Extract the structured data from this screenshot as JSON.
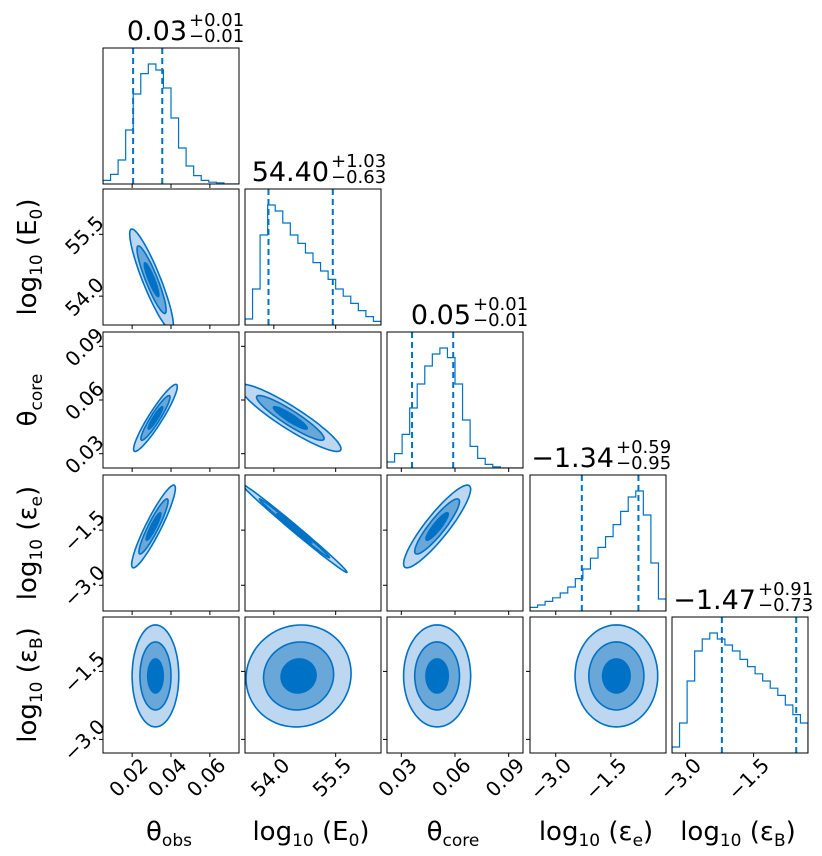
{
  "chart_data": {
    "type": "corner",
    "color": "#0072c6",
    "fill_levels": [
      "#0072c6",
      "#6aa7d9",
      "#bcd7ef"
    ],
    "parameters": [
      {
        "id": "theta_obs",
        "label_main": "θ",
        "label_sub": "obs",
        "range": [
          0.005,
          0.075
        ],
        "ticks": [
          0.02,
          0.04,
          0.06
        ],
        "tick_labels": [
          "0.02",
          "0.04",
          "0.06"
        ],
        "title_value": "0.03",
        "title_plus": "+0.01",
        "title_minus": "−0.01",
        "quantiles": [
          0.0205,
          0.0355
        ]
      },
      {
        "id": "log10_E0",
        "label_main": "log",
        "label_sub": "10",
        "label_tail": " (E",
        "label_sub2": "0",
        "label_end": ")",
        "range": [
          53.3,
          56.6
        ],
        "ticks": [
          54.0,
          55.5
        ],
        "tick_labels": [
          "54.0",
          "55.5"
        ],
        "title_value": "54.40",
        "title_plus": "+1.03",
        "title_minus": "−0.63",
        "quantiles": [
          53.87,
          55.43
        ]
      },
      {
        "id": "theta_core",
        "label_main": "θ",
        "label_sub": "core",
        "range": [
          0.022,
          0.098
        ],
        "ticks": [
          0.03,
          0.06,
          0.09
        ],
        "tick_labels": [
          "0.03",
          "0.06",
          "0.09"
        ],
        "title_value": "0.05",
        "title_plus": "+0.01",
        "title_minus": "−0.01",
        "quantiles": [
          0.036,
          0.059
        ]
      },
      {
        "id": "log10_eps_e",
        "label_main": "log",
        "label_sub": "10",
        "label_tail": " (ε",
        "label_sub2": "e",
        "label_end": ")",
        "range": [
          -3.7,
          0.0
        ],
        "ticks": [
          -3.0,
          -1.5
        ],
        "tick_labels": [
          "−3.0",
          "−1.5"
        ],
        "title_value": "−1.34",
        "title_plus": "+0.59",
        "title_minus": "−0.95",
        "quantiles": [
          -2.29,
          -0.75
        ]
      },
      {
        "id": "log10_eps_B",
        "label_main": "log",
        "label_sub": "10",
        "label_tail": " (ε",
        "label_sub2": "B",
        "label_end": ")",
        "range": [
          -3.3,
          -0.3
        ],
        "ticks": [
          -3.0,
          -1.5
        ],
        "tick_labels": [
          "−3.0",
          "−1.5"
        ],
        "title_value": "−1.47",
        "title_plus": "+0.91",
        "title_minus": "−0.73",
        "quantiles": [
          -2.2,
          -0.56
        ]
      }
    ],
    "histograms": [
      [
        0.03,
        0.08,
        0.2,
        0.45,
        0.75,
        0.92,
        1.0,
        0.95,
        0.8,
        0.55,
        0.3,
        0.15,
        0.07,
        0.03,
        0.015,
        0.01,
        0.0,
        0.0
      ],
      [
        0.05,
        0.3,
        0.75,
        1.0,
        0.95,
        0.85,
        0.75,
        0.68,
        0.6,
        0.52,
        0.45,
        0.38,
        0.3,
        0.24,
        0.18,
        0.12,
        0.07,
        0.03
      ],
      [
        0.05,
        0.12,
        0.28,
        0.5,
        0.7,
        0.85,
        0.95,
        1.0,
        0.92,
        0.7,
        0.4,
        0.18,
        0.08,
        0.03,
        0.01,
        0.0,
        0.0,
        0.0
      ],
      [
        0.03,
        0.05,
        0.08,
        0.11,
        0.15,
        0.2,
        0.27,
        0.35,
        0.44,
        0.53,
        0.62,
        0.72,
        0.83,
        0.95,
        1.0,
        0.8,
        0.4,
        0.1
      ],
      [
        0.05,
        0.25,
        0.6,
        0.85,
        0.95,
        1.0,
        0.95,
        0.9,
        0.85,
        0.78,
        0.72,
        0.66,
        0.6,
        0.54,
        0.48,
        0.4,
        0.32,
        0.25
      ]
    ],
    "contours": [
      {
        "row": 1,
        "col": 0,
        "mean": [
          0.03,
          54.4
        ],
        "sd": [
          0.0075,
          0.82
        ],
        "rho": -0.9
      },
      {
        "row": 2,
        "col": 0,
        "mean": [
          0.032,
          0.05
        ],
        "sd": [
          0.0075,
          0.0125
        ],
        "rho": 0.93
      },
      {
        "row": 2,
        "col": 1,
        "mean": [
          54.4,
          0.05
        ],
        "sd": [
          0.82,
          0.0125
        ],
        "rho": -0.92
      },
      {
        "row": 3,
        "col": 0,
        "mean": [
          0.031,
          -1.4
        ],
        "sd": [
          0.0075,
          0.75
        ],
        "rho": 0.92
      },
      {
        "row": 3,
        "col": 1,
        "mean": [
          54.5,
          -1.45
        ],
        "sd": [
          0.85,
          0.8
        ],
        "rho": -0.995
      },
      {
        "row": 3,
        "col": 2,
        "mean": [
          0.05,
          -1.4
        ],
        "sd": [
          0.0125,
          0.75
        ],
        "rho": 0.9
      },
      {
        "row": 4,
        "col": 0,
        "mean": [
          0.032,
          -1.6
        ],
        "sd": [
          0.008,
          0.75
        ],
        "rho": 0.0
      },
      {
        "row": 4,
        "col": 1,
        "mean": [
          54.6,
          -1.6
        ],
        "sd": [
          0.85,
          0.75
        ],
        "rho": 0.05
      },
      {
        "row": 4,
        "col": 2,
        "mean": [
          0.05,
          -1.6
        ],
        "sd": [
          0.0125,
          0.75
        ],
        "rho": 0.0
      },
      {
        "row": 4,
        "col": 3,
        "mean": [
          -1.35,
          -1.6
        ],
        "sd": [
          0.75,
          0.75
        ],
        "rho": 0.0
      }
    ],
    "contour_levels_sigma": [
      0.5,
      1.0,
      1.5
    ]
  }
}
